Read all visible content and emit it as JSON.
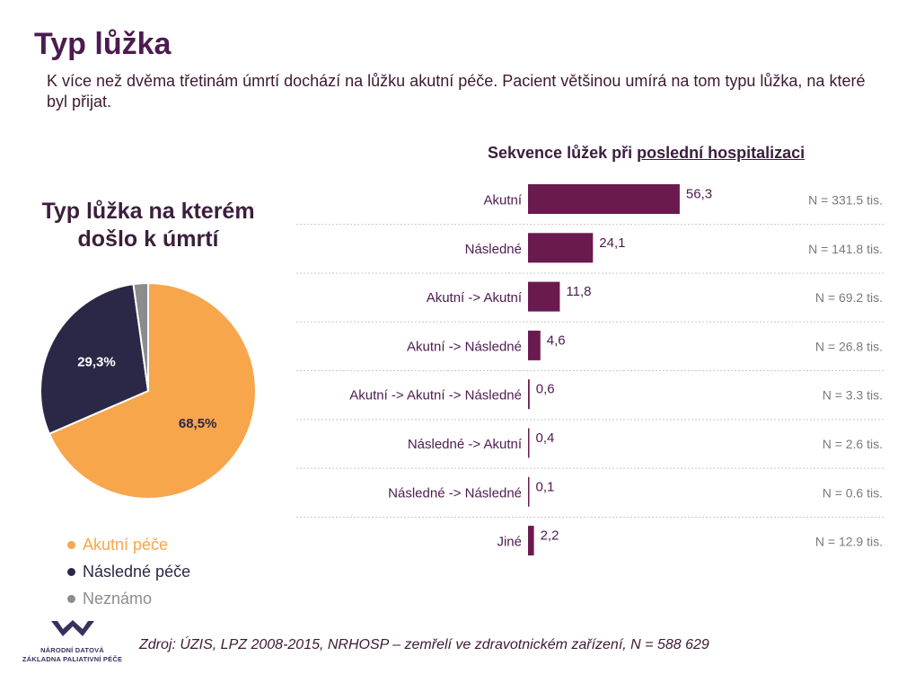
{
  "header": {
    "title": "Typ lůžka",
    "subtitle": "K více než dvěma třetinám úmrtí dochází na lůžku akutní péče. Pacient většinou umírá na tom typu lůžka, na které byl přijat."
  },
  "pie": {
    "title_line1": "Typ lůžka na kterém",
    "title_line2": "došlo k úmrtí",
    "legend": [
      {
        "label": "Akutní péče",
        "color": "#f7a64b",
        "text_color": "#f7a64b"
      },
      {
        "label": "Následné péče",
        "color": "#2a2846",
        "text_color": "#2a2846"
      },
      {
        "label": "Neznámo",
        "color": "#8c8c8c",
        "text_color": "#8c8c8c"
      }
    ]
  },
  "bar": {
    "title_prefix": "Sekvence lůžek při",
    "title_underlined": "poslední hospitalizaci"
  },
  "footer": {
    "source": "Zdroj: ÚZIS, LPZ 2008-2015, NRHOSP – zemřelí ve zdravotnickém zařízení, N = 588 629",
    "logo_line1": "NÁRODNÍ DATOVÁ",
    "logo_line2": "ZÁKLADNA PALIATIVNÍ PÉČE"
  },
  "chart_data": [
    {
      "type": "pie",
      "title": "Typ lůžka na kterém došlo k úmrtí",
      "slices": [
        {
          "label": "Akutní péče",
          "value": 68.5,
          "display": "68,5%",
          "color": "#f7a64b"
        },
        {
          "label": "Následné péče",
          "value": 29.3,
          "display": "29,3%",
          "color": "#2a2846"
        },
        {
          "label": "Neznámo",
          "value": 2.2,
          "display": "",
          "color": "#8c8c8c"
        }
      ]
    },
    {
      "type": "bar",
      "orientation": "horizontal",
      "title": "Sekvence lůžek při poslední hospitalizaci",
      "categories": [
        "Akutní",
        "Následné",
        "Akutní -> Akutní",
        "Akutní -> Následné",
        "Akutní -> Akutní -> Následné",
        "Následné -> Akutní",
        "Následné -> Následné",
        "Jiné"
      ],
      "values": [
        56.3,
        24.1,
        11.8,
        4.6,
        0.6,
        0.4,
        0.1,
        2.2
      ],
      "value_labels": [
        "56,3",
        "24,1",
        "11,8",
        "4,6",
        "0,6",
        "0,4",
        "0,1",
        "2,2"
      ],
      "n_labels": [
        "N = 331.5 tis.",
        "N = 141.8 tis.",
        "N = 69.2 tis.",
        "N = 26.8 tis.",
        "N = 3.3 tis.",
        "N = 2.6 tis.",
        "N = 0.6 tis.",
        "N = 12.9 tis."
      ],
      "xlim": [
        0,
        60
      ],
      "bar_color": "#6b1a4f"
    }
  ]
}
